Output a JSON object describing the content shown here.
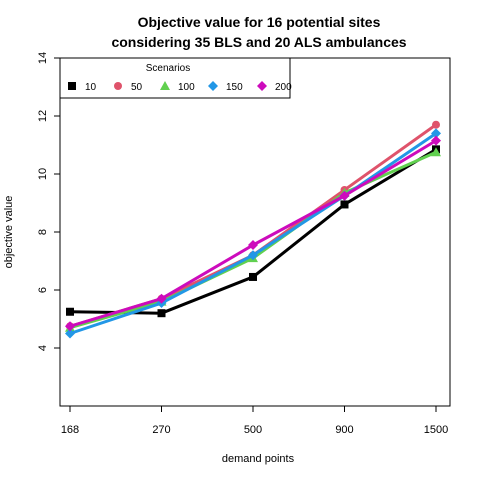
{
  "chart_data": {
    "type": "line",
    "title_line1": "Objective value for 16 potential sites",
    "title_line2": "considering 35 BLS and 20 ALS ambulances",
    "xlabel": "demand points",
    "ylabel": "objective value",
    "categories": [
      "168",
      "270",
      "500",
      "900",
      "1500"
    ],
    "ylim": [
      2,
      14
    ],
    "yticks": [
      4,
      6,
      8,
      10,
      12,
      14
    ],
    "legend": {
      "title": "Scenarios",
      "placement": "top-left"
    },
    "series": [
      {
        "name": "10",
        "color": "#000000",
        "marker": "square",
        "values": [
          5.25,
          5.2,
          6.45,
          8.95,
          10.85
        ]
      },
      {
        "name": "50",
        "color": "#DF536B",
        "marker": "circle",
        "values": [
          4.75,
          5.7,
          7.2,
          9.45,
          11.7
        ]
      },
      {
        "name": "100",
        "color": "#61D04F",
        "marker": "triangle",
        "values": [
          4.7,
          5.6,
          7.1,
          9.35,
          10.75
        ]
      },
      {
        "name": "150",
        "color": "#2297E6",
        "marker": "diamond",
        "values": [
          4.5,
          5.55,
          7.2,
          9.25,
          11.4
        ]
      },
      {
        "name": "200",
        "color": "#CD0BBC",
        "marker": "diamond",
        "values": [
          4.75,
          5.7,
          7.55,
          9.25,
          11.15
        ]
      }
    ]
  }
}
